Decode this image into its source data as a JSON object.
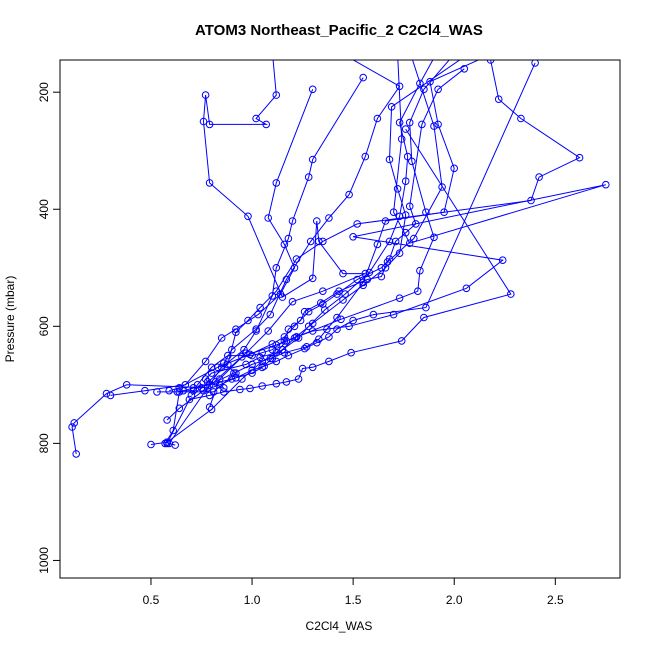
{
  "chart_data": {
    "type": "line",
    "title": "ATOM3 Northeast_Pacific_2 C2Cl4_WAS",
    "xlabel": "C2Cl4_WAS",
    "ylabel": "Pressure (mbar)",
    "xlim": [
      0.05,
      2.82
    ],
    "ylim": [
      1030,
      145
    ],
    "y_reversed": true,
    "x_ticks": [
      0.5,
      1.0,
      1.5,
      2.0,
      2.5
    ],
    "x_tick_labels": [
      "0.5",
      "1.0",
      "1.5",
      "2.0",
      "2.5"
    ],
    "y_ticks": [
      200,
      400,
      600,
      800,
      1000
    ],
    "y_tick_labels": [
      "200",
      "400",
      "600",
      "800",
      "1000"
    ],
    "grid": false,
    "series_color": "#0000ff",
    "series": [
      {
        "x": [
          2.1,
          1.85,
          1.78,
          1.79,
          1.86,
          1.9,
          1.83,
          1.82,
          1.73,
          1.44,
          1.22,
          1.12,
          0.95,
          0.78,
          0.38,
          0.28,
          0.12,
          0.11,
          0.13
        ],
        "y": [
          95,
          195,
          252,
          318,
          405,
          448,
          505,
          540,
          552,
          588,
          618,
          632,
          652,
          705,
          700,
          715,
          765,
          772,
          818
        ]
      },
      {
        "x": [
          1.45,
          1.73,
          1.62,
          1.56,
          1.48,
          1.38,
          1.29,
          1.17,
          1.09,
          1.02,
          0.9,
          0.86,
          0.92,
          0.81,
          0.63,
          0.53
        ],
        "y": [
          135,
          190,
          245,
          310,
          375,
          415,
          455,
          520,
          580,
          605,
          640,
          663,
          680,
          712,
          712,
          712
        ]
      },
      {
        "x": [
          1.95,
          1.83,
          1.73,
          1.77,
          1.76,
          1.73,
          1.68,
          1.58,
          1.46,
          1.36,
          1.28,
          1.23,
          1.15,
          1.05,
          0.95,
          0.8,
          0.58,
          0.5
        ],
        "y": [
          110,
          185,
          252,
          310,
          352,
          412,
          455,
          508,
          545,
          572,
          600,
          620,
          640,
          660,
          690,
          742,
          798,
          802
        ]
      },
      {
        "x": [
          2.18,
          2.22,
          2.33,
          2.62,
          2.42,
          2.38,
          1.52,
          1.35,
          1.22,
          1.12,
          1.04,
          0.98,
          0.92,
          0.88,
          0.75,
          0.7
        ],
        "y": [
          145,
          212,
          245,
          312,
          345,
          385,
          425,
          455,
          485,
          540,
          568,
          590,
          610,
          665,
          705,
          718
        ]
      },
      {
        "x": [
          1.58,
          1.72,
          1.74,
          1.7,
          1.78,
          2.75,
          1.5,
          2.24,
          2.06,
          1.7,
          1.48,
          1.3,
          1.22,
          1.17,
          1.12,
          1.04,
          0.97,
          0.8,
          0.77,
          0.78,
          0.86
        ],
        "y": [
          80,
          135,
          280,
          405,
          458,
          358,
          447,
          487,
          535,
          580,
          600,
          608,
          618,
          625,
          645,
          653,
          665,
          680,
          690,
          695,
          705
        ]
      },
      {
        "x": [
          1.28,
          1.1,
          1.12,
          1.02,
          1.07,
          0.79,
          0.77,
          0.76,
          0.79,
          0.98,
          1.15,
          1.3,
          1.32,
          1.33,
          1.45,
          1.56,
          1.35,
          1.2,
          1.08,
          0.97,
          0.84,
          0.79
        ],
        "y": [
          95,
          130,
          205,
          245,
          255,
          255,
          205,
          250,
          355,
          412,
          550,
          518,
          420,
          455,
          510,
          510,
          540,
          558,
          608,
          646,
          690,
          738
        ]
      },
      {
        "x": [
          2.28,
          1.88,
          1.92,
          2.0,
          1.95,
          1.66,
          1.62,
          1.55,
          1.42,
          1.37,
          1.33,
          1.27,
          1.16,
          1.09,
          1.0,
          0.91,
          0.82,
          0.64,
          0.61,
          0.57
        ],
        "y": [
          120,
          182,
          255,
          330,
          405,
          420,
          460,
          525,
          585,
          605,
          622,
          635,
          645,
          655,
          665,
          680,
          695,
          712,
          778,
          800
        ]
      },
      {
        "x": [
          1.55,
          1.3,
          1.28,
          1.2,
          1.18,
          1.12,
          1.1,
          1.02,
          0.96,
          0.85,
          0.59,
          0.62
        ],
        "y": [
          175,
          315,
          345,
          420,
          450,
          500,
          548,
          608,
          640,
          670,
          800,
          803
        ]
      },
      {
        "x": [
          1.78,
          1.9,
          1.94,
          1.8,
          1.67,
          1.64,
          1.57,
          1.43,
          1.34,
          1.26,
          1.24,
          1.18,
          1.16,
          1.1,
          1.05,
          1.0,
          0.88,
          0.8,
          0.73,
          0.71,
          0.66
        ],
        "y": [
          130,
          258,
          362,
          450,
          490,
          515,
          520,
          540,
          560,
          575,
          590,
          605,
          625,
          640,
          645,
          650,
          650,
          670,
          700,
          710,
          710
        ]
      },
      {
        "x": [
          2.05,
          1.92,
          1.84,
          1.78,
          1.81,
          1.76,
          1.71,
          1.68,
          1.64,
          1.52,
          1.42,
          1.35,
          1.28,
          1.21,
          1.16,
          1.1,
          0.99,
          0.83,
          0.64,
          0.59
        ],
        "y": [
          160,
          195,
          255,
          395,
          425,
          440,
          455,
          485,
          500,
          520,
          545,
          562,
          575,
          600,
          618,
          630,
          648,
          670,
          705,
          710
        ]
      },
      {
        "x": [
          2.3,
          1.69,
          1.68,
          1.72,
          1.76,
          1.73,
          1.66,
          1.55,
          1.45,
          1.3,
          1.21,
          1.15,
          1.1,
          1.05,
          1.0,
          0.9,
          0.79,
          0.71
        ],
        "y": [
          80,
          225,
          315,
          365,
          410,
          475,
          500,
          530,
          555,
          595,
          620,
          640,
          655,
          670,
          680,
          690,
          700,
          705
        ]
      },
      {
        "x": [
          1.3,
          1.12,
          1.08,
          1.16,
          1.21,
          1.14,
          1.03,
          0.92,
          0.85,
          0.77,
          0.67,
          0.47,
          0.3
        ],
        "y": [
          195,
          355,
          415,
          460,
          500,
          545,
          580,
          605,
          620,
          660,
          700,
          710,
          718
        ]
      },
      {
        "x": [
          1.76,
          2.28,
          1.85,
          1.74,
          1.49,
          1.38,
          1.3,
          1.25,
          1.23,
          1.17,
          1.12,
          1.05,
          0.99,
          0.94,
          0.86,
          0.79,
          0.69,
          0.58
        ],
        "y": [
          263,
          545,
          585,
          625,
          645,
          660,
          670,
          672,
          690,
          695,
          698,
          702,
          706,
          708,
          712,
          718,
          725,
          800
        ]
      },
      {
        "x": [
          2.4,
          1.86,
          1.6,
          1.5,
          1.42,
          1.38,
          1.32,
          1.26,
          1.18,
          1.12,
          1.06,
          1.0,
          0.92,
          0.84,
          0.76,
          0.64,
          0.58
        ],
        "y": [
          150,
          568,
          580,
          590,
          605,
          618,
          628,
          638,
          650,
          660,
          668,
          675,
          688,
          700,
          710,
          740,
          760
        ]
      }
    ]
  }
}
